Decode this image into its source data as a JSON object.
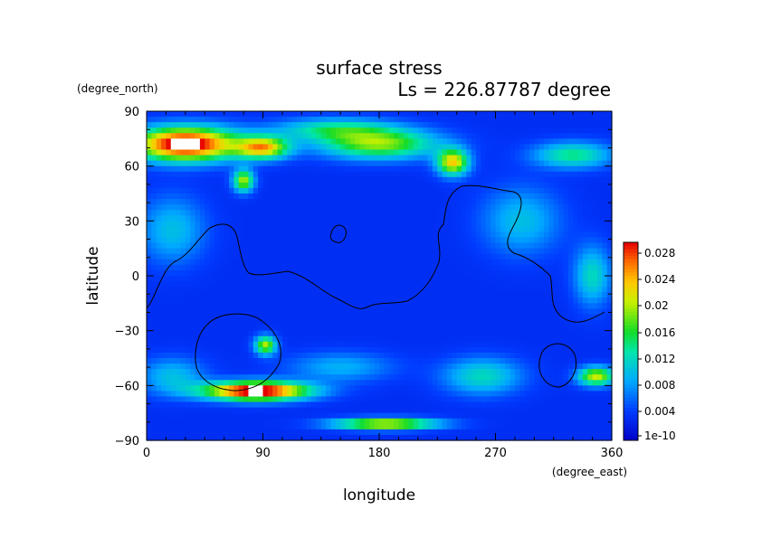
{
  "chart_data": {
    "type": "heatmap",
    "title": "surface stress",
    "subtitle": "Ls = 226.87787 degree",
    "xlabel": "longitude",
    "ylabel": "latitude",
    "x_units": "(degree_east)",
    "y_units": "(degree_north)",
    "xlim": [
      0,
      360
    ],
    "ylim": [
      -90,
      90
    ],
    "x_ticks": [
      "0",
      "90",
      "180",
      "270",
      "360"
    ],
    "y_ticks": [
      "90",
      "60",
      "30",
      "0",
      "−30",
      "−60",
      "−90"
    ],
    "colorbar": {
      "ticks": [
        "1e-10",
        "0.004",
        "0.008",
        "0.012",
        "0.016",
        "0.02",
        "0.024",
        "0.028"
      ],
      "range": [
        0,
        0.03
      ]
    },
    "fields": {
      "background": 0.0035,
      "blobs": [
        {
          "lon": 30,
          "lat": 72,
          "rlon": 40,
          "rlat": 9,
          "value": 0.03
        },
        {
          "lon": 90,
          "lat": 70,
          "rlon": 20,
          "rlat": 6,
          "value": 0.02
        },
        {
          "lon": 180,
          "lat": 72,
          "rlon": 45,
          "rlat": 8,
          "value": 0.016
        },
        {
          "lon": 237,
          "lat": 62,
          "rlon": 12,
          "rlat": 7,
          "value": 0.02
        },
        {
          "lon": 145,
          "lat": 80,
          "rlon": 45,
          "rlat": 6,
          "value": 0.01
        },
        {
          "lon": 330,
          "lat": 66,
          "rlon": 30,
          "rlat": 7,
          "value": 0.011
        },
        {
          "lon": 75,
          "lat": 52,
          "rlon": 8,
          "rlat": 6,
          "value": 0.017
        },
        {
          "lon": 85,
          "lat": -63,
          "rlon": 40,
          "rlat": 5,
          "value": 0.03
        },
        {
          "lon": 185,
          "lat": -81,
          "rlon": 40,
          "rlat": 3,
          "value": 0.02
        },
        {
          "lon": 92,
          "lat": -38,
          "rlon": 8,
          "rlat": 5,
          "value": 0.017
        },
        {
          "lon": 348,
          "lat": -55,
          "rlon": 14,
          "rlat": 5,
          "value": 0.018
        },
        {
          "lon": 345,
          "lat": 0,
          "rlon": 14,
          "rlat": 16,
          "value": 0.009
        },
        {
          "lon": 20,
          "lat": 25,
          "rlon": 25,
          "rlat": 18,
          "value": 0.007
        },
        {
          "lon": 290,
          "lat": 30,
          "rlon": 30,
          "rlat": 18,
          "value": 0.007
        },
        {
          "lon": 260,
          "lat": -55,
          "rlon": 30,
          "rlat": 10,
          "value": 0.009
        },
        {
          "lon": 20,
          "lat": -55,
          "rlon": 25,
          "rlat": 10,
          "value": 0.007
        },
        {
          "lon": 150,
          "lat": -50,
          "rlon": 40,
          "rlat": 8,
          "value": 0.006
        }
      ]
    }
  }
}
